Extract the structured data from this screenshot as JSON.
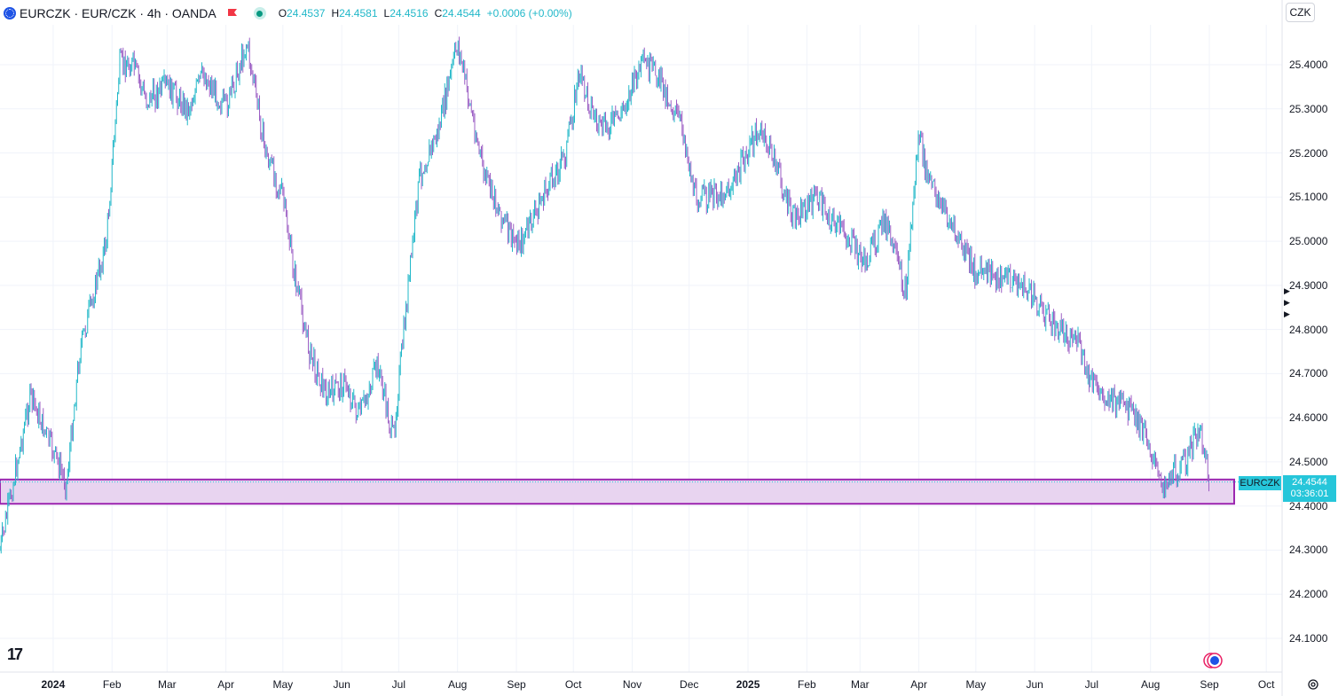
{
  "header": {
    "title": "EURCZK · EUR/CZK · 4h · OANDA",
    "ohlc": {
      "o_label": "O",
      "o": "24.4537",
      "h_label": "H",
      "h": "24.4581",
      "l_label": "L",
      "l": "24.4516",
      "c_label": "C",
      "c": "24.4544",
      "change": "+0.0006 (+0.00%)"
    }
  },
  "currency_button": "CZK",
  "price_tag": {
    "symbol": "EURCZK",
    "price": "24.4544",
    "countdown": "03:36:01"
  },
  "colors": {
    "up": "#22b8c9",
    "down": "#9c5fc4",
    "zone_fill": "#e8d4f0",
    "zone_border": "#9c27b0",
    "accent": "#26c6da"
  },
  "chart_data": {
    "type": "line",
    "title": "",
    "xlabel": "",
    "ylabel": "",
    "ylim": [
      24.04,
      25.5
    ],
    "y_ticks": [
      "25.4000",
      "25.3000",
      "25.2000",
      "25.1000",
      "25.0000",
      "24.9000",
      "24.8000",
      "24.7000",
      "24.6000",
      "24.5000",
      "24.4000",
      "24.3000",
      "24.2000",
      "24.1000"
    ],
    "x_ticks": [
      {
        "label": "2024",
        "bold": true
      },
      {
        "label": "Feb"
      },
      {
        "label": "Mar"
      },
      {
        "label": "Apr"
      },
      {
        "label": "May"
      },
      {
        "label": "Jun"
      },
      {
        "label": "Jul"
      },
      {
        "label": "Aug"
      },
      {
        "label": "Sep"
      },
      {
        "label": "Oct"
      },
      {
        "label": "Nov"
      },
      {
        "label": "Dec"
      },
      {
        "label": "2025",
        "bold": true
      },
      {
        "label": "Feb"
      },
      {
        "label": "Mar"
      },
      {
        "label": "Apr"
      },
      {
        "label": "May"
      },
      {
        "label": "Jun"
      },
      {
        "label": "Jul"
      },
      {
        "label": "Aug"
      },
      {
        "label": "Sep"
      },
      {
        "label": "Oct"
      }
    ],
    "x": [
      "2023-12-04",
      "2023-12-20",
      "2024-01-08",
      "2024-01-15",
      "2024-01-29",
      "2024-02-05",
      "2024-02-12",
      "2024-02-19",
      "2024-03-01",
      "2024-03-12",
      "2024-03-20",
      "2024-04-01",
      "2024-04-12",
      "2024-04-22",
      "2024-05-01",
      "2024-05-06",
      "2024-05-15",
      "2024-05-24",
      "2024-06-03",
      "2024-06-10",
      "2024-06-20",
      "2024-06-28",
      "2024-07-05",
      "2024-07-12",
      "2024-07-22",
      "2024-08-01",
      "2024-08-15",
      "2024-08-30",
      "2024-09-04",
      "2024-09-15",
      "2024-09-27",
      "2024-10-04",
      "2024-10-15",
      "2024-10-25",
      "2024-11-06",
      "2024-11-14",
      "2024-11-28",
      "2024-12-04",
      "2024-12-13",
      "2024-12-23",
      "2025-01-06",
      "2025-01-14",
      "2025-01-24",
      "2025-02-06",
      "2025-02-14",
      "2025-02-24",
      "2025-03-04",
      "2025-03-14",
      "2025-03-25",
      "2025-04-01",
      "2025-04-05",
      "2025-04-11",
      "2025-04-22",
      "2025-05-01",
      "2025-05-15",
      "2025-05-26",
      "2025-06-04",
      "2025-06-12",
      "2025-06-23",
      "2025-06-30",
      "2025-07-08",
      "2025-07-20",
      "2025-07-31",
      "2025-08-06",
      "2025-08-13",
      "2025-08-20",
      "2025-08-26",
      "2025-08-30",
      "2025-09-01"
    ],
    "values": [
      24.3,
      24.65,
      24.45,
      24.75,
      25.0,
      25.4,
      25.4,
      25.32,
      25.35,
      25.3,
      25.38,
      25.3,
      25.45,
      25.2,
      25.1,
      24.95,
      24.75,
      24.65,
      24.68,
      24.6,
      24.72,
      24.55,
      24.85,
      25.15,
      25.25,
      25.45,
      25.15,
      25.0,
      25.0,
      25.1,
      25.2,
      25.38,
      25.25,
      25.28,
      25.4,
      25.38,
      25.25,
      25.1,
      25.1,
      25.12,
      25.25,
      25.2,
      25.05,
      25.1,
      25.05,
      25.0,
      24.95,
      25.05,
      24.88,
      25.25,
      25.15,
      25.1,
      25.0,
      24.93,
      24.92,
      24.9,
      24.85,
      24.8,
      24.78,
      24.68,
      24.65,
      24.62,
      24.55,
      24.45,
      24.48,
      24.5,
      24.58,
      24.52,
      24.45
    ],
    "support_zone": {
      "low": 24.405,
      "high": 24.46
    }
  }
}
